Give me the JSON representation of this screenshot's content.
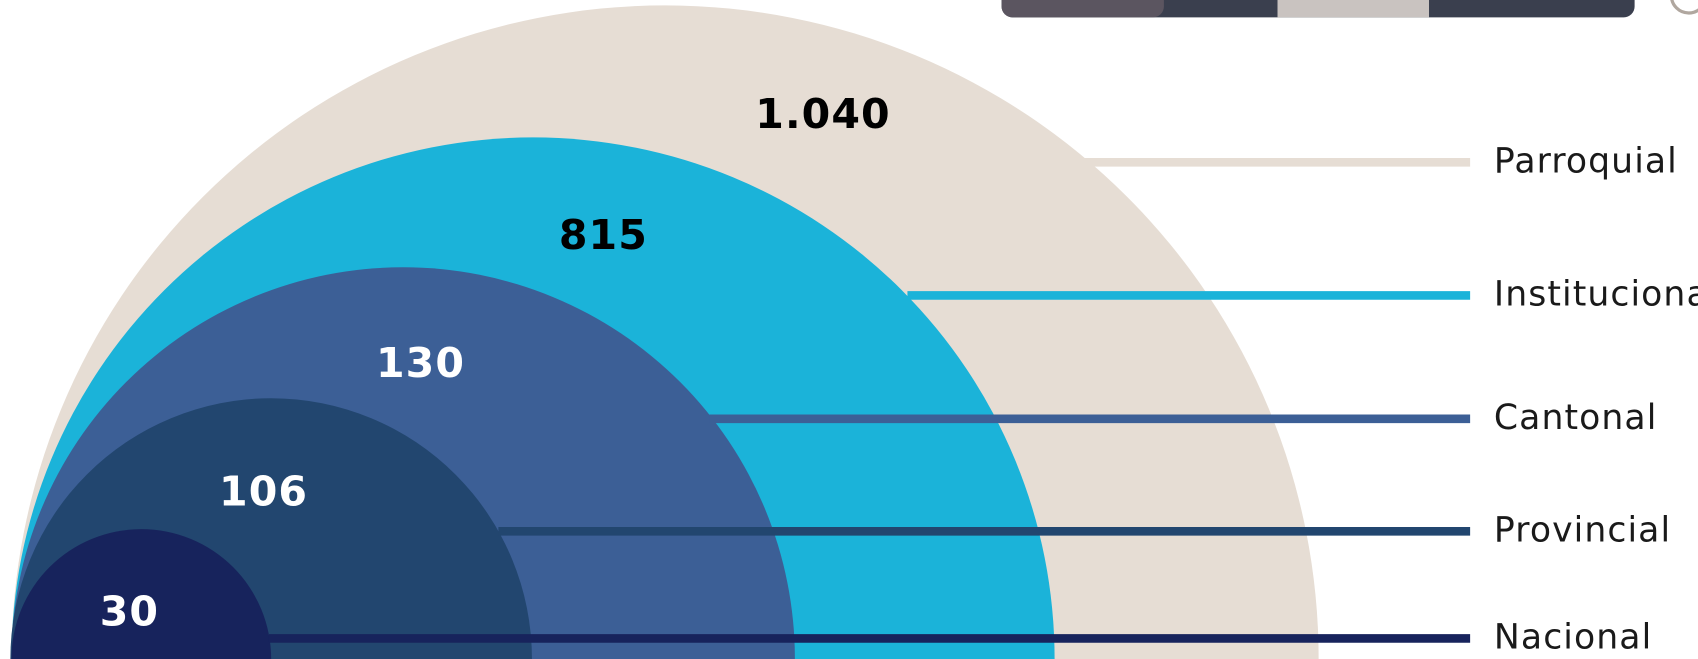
{
  "rings": [
    {
      "value": "1.040",
      "label": "Parroquial"
    },
    {
      "value": "815",
      "label": "Institucional"
    },
    {
      "value": "130",
      "label": "Cantonal"
    },
    {
      "value": "106",
      "label": "Provincial"
    },
    {
      "value": "30",
      "label": "Nacional"
    }
  ]
}
